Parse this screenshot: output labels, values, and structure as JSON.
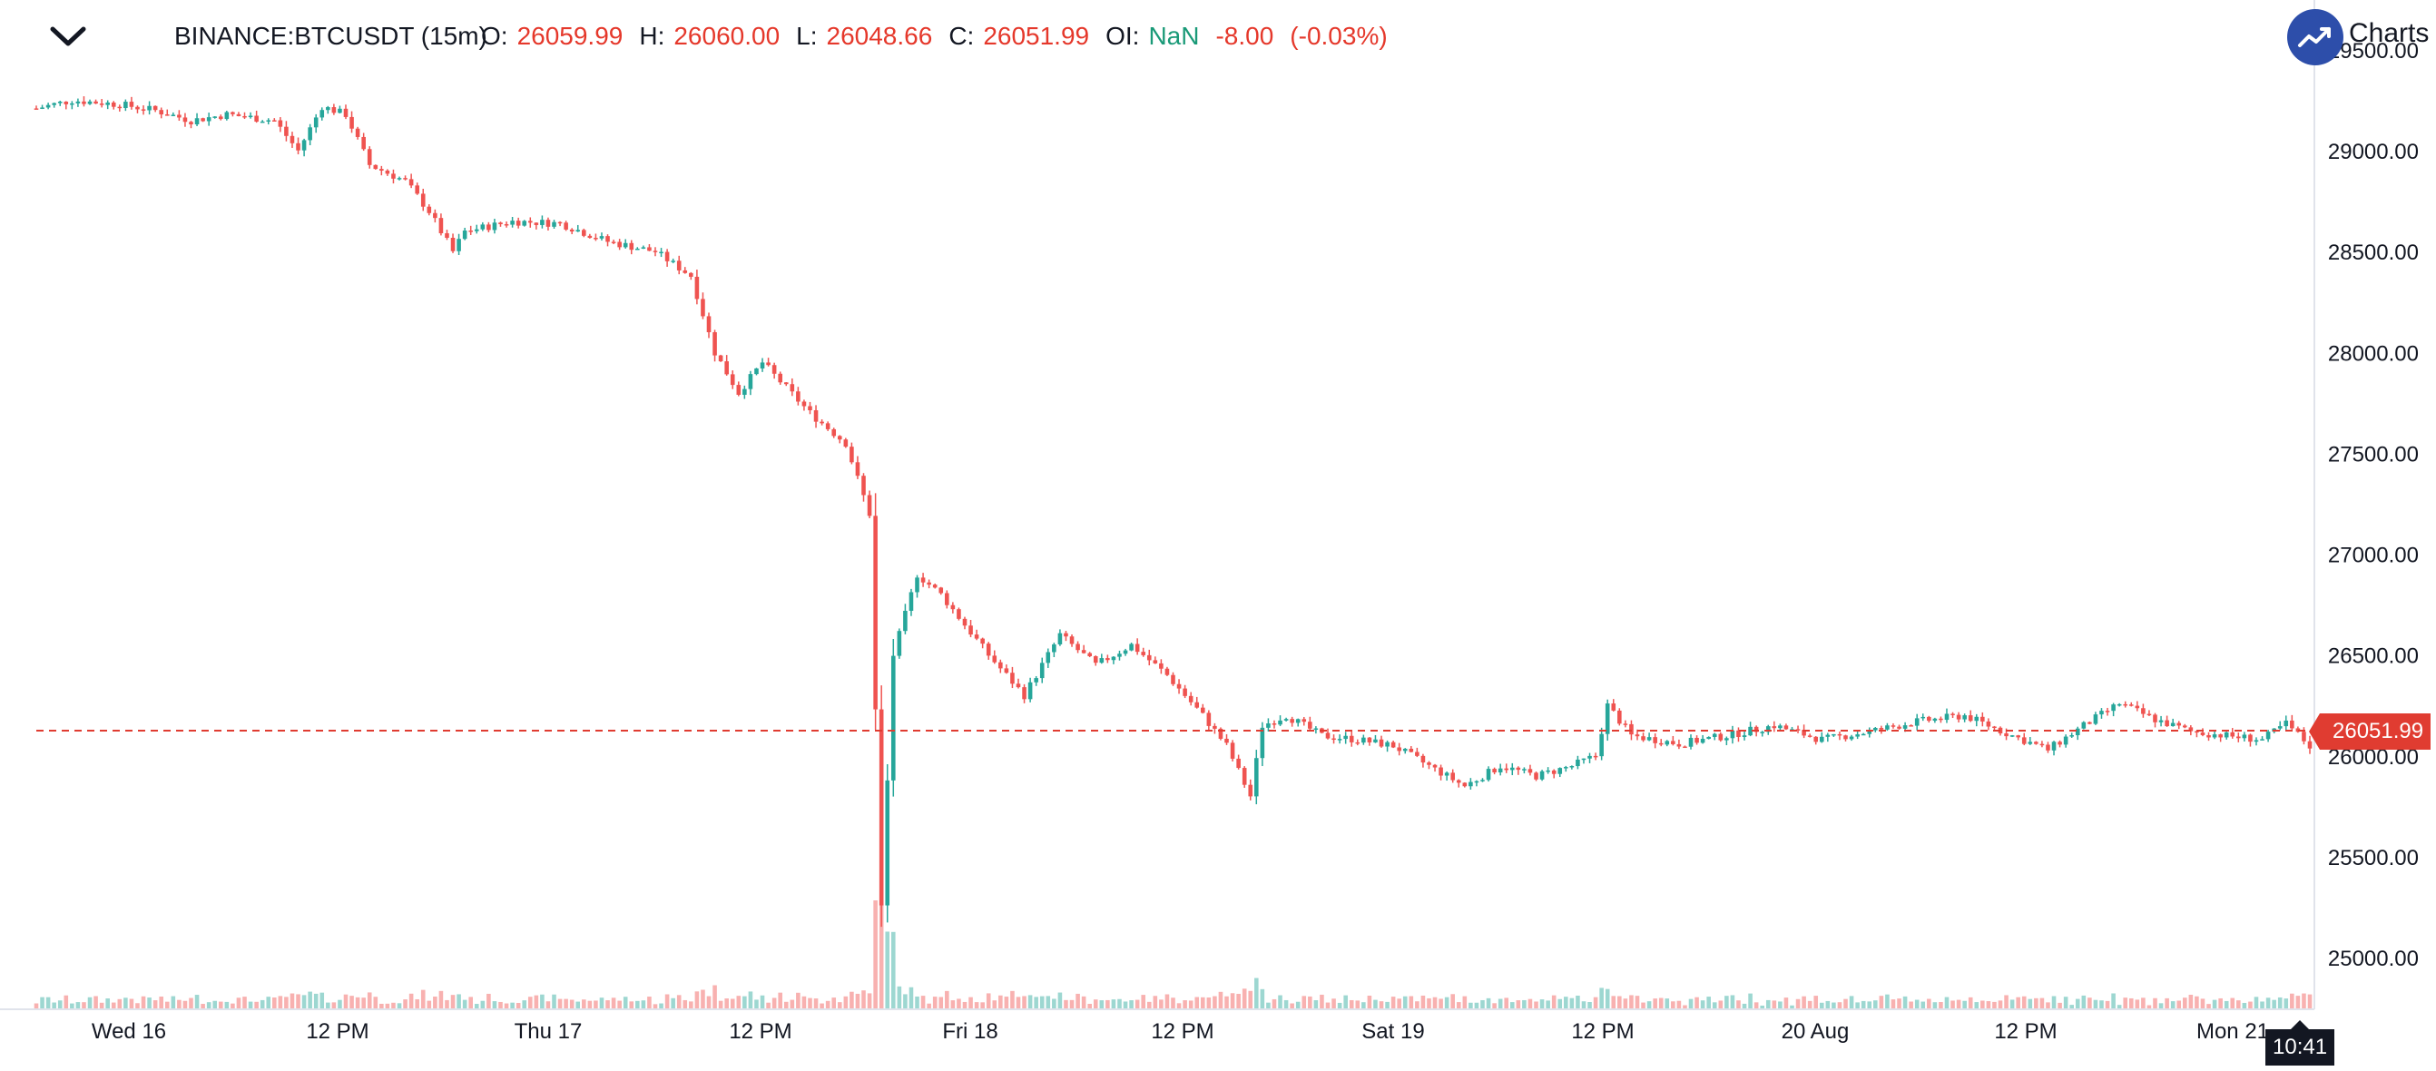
{
  "header": {
    "symbol": "BINANCE:BTCUSDT (15m)",
    "open_label": "O:",
    "open_value": "26059.99",
    "high_label": "H:",
    "high_value": "26060.00",
    "low_label": "L:",
    "low_value": "26048.66",
    "close_label": "C:",
    "close_value": "26051.99",
    "oi_label": "OI:",
    "oi_value": "NaN",
    "change_value": "-8.00",
    "change_percent": "(-0.03%)"
  },
  "branding": {
    "logo_icon": "trend-up-icon",
    "logo_text": "Charts b"
  },
  "price_tag": "26051.99",
  "crosshair_time": "10:41",
  "colors": {
    "up": "#26a69a",
    "down": "#ef5350",
    "last_price": "#e03c31",
    "logo_bg": "#2d4eaa"
  },
  "chart_data": {
    "type": "candlestick",
    "title": "",
    "xlabel": "",
    "ylabel": "",
    "interval": "15m",
    "ylim": [
      24800,
      29500
    ],
    "yticks": [
      25000,
      25500,
      26000,
      26500,
      27000,
      27500,
      28000,
      28500,
      29000,
      29500
    ],
    "ytick_labels": [
      "25000.00",
      "25500.00",
      "26000.00",
      "26500.00",
      "27000.00",
      "27500.00",
      "28000.00",
      "28500.00",
      "29000.00",
      "29500.00"
    ],
    "xticks": [
      "Wed 16",
      "12 PM",
      "Thu 17",
      "12 PM",
      "Fri 18",
      "12 PM",
      "Sat 19",
      "12 PM",
      "20 Aug",
      "12 PM",
      "Mon 21"
    ],
    "last_price": 26051.99,
    "price_path": [
      [
        0,
        29210
      ],
      [
        6,
        29250
      ],
      [
        14,
        29230
      ],
      [
        20,
        29200
      ],
      [
        26,
        29150
      ],
      [
        32,
        29180
      ],
      [
        40,
        29150
      ],
      [
        44,
        29000
      ],
      [
        48,
        29220
      ],
      [
        52,
        29180
      ],
      [
        56,
        28930
      ],
      [
        62,
        28850
      ],
      [
        66,
        28700
      ],
      [
        70,
        28500
      ],
      [
        72,
        28600
      ],
      [
        80,
        28650
      ],
      [
        88,
        28640
      ],
      [
        96,
        28550
      ],
      [
        104,
        28500
      ],
      [
        110,
        28380
      ],
      [
        114,
        28000
      ],
      [
        118,
        27800
      ],
      [
        122,
        27950
      ],
      [
        130,
        27700
      ],
      [
        136,
        27550
      ],
      [
        140,
        27200
      ],
      [
        142,
        25250
      ],
      [
        144,
        26500
      ],
      [
        148,
        26900
      ],
      [
        152,
        26800
      ],
      [
        156,
        26650
      ],
      [
        160,
        26500
      ],
      [
        166,
        26300
      ],
      [
        172,
        26600
      ],
      [
        178,
        26450
      ],
      [
        184,
        26550
      ],
      [
        190,
        26400
      ],
      [
        196,
        26200
      ],
      [
        200,
        26050
      ],
      [
        204,
        25800
      ],
      [
        206,
        26150
      ],
      [
        210,
        26200
      ],
      [
        216,
        26100
      ],
      [
        222,
        26080
      ],
      [
        228,
        26050
      ],
      [
        234,
        25950
      ],
      [
        240,
        25850
      ],
      [
        246,
        25950
      ],
      [
        252,
        25900
      ],
      [
        258,
        25950
      ],
      [
        262,
        26000
      ],
      [
        264,
        26250
      ],
      [
        268,
        26100
      ],
      [
        276,
        26060
      ],
      [
        284,
        26100
      ],
      [
        292,
        26150
      ],
      [
        300,
        26080
      ],
      [
        308,
        26120
      ],
      [
        316,
        26170
      ],
      [
        324,
        26200
      ],
      [
        332,
        26100
      ],
      [
        338,
        26030
      ],
      [
        344,
        26150
      ],
      [
        350,
        26260
      ],
      [
        356,
        26180
      ],
      [
        362,
        26120
      ],
      [
        368,
        26100
      ],
      [
        374,
        26080
      ],
      [
        378,
        26160
      ],
      [
        382,
        26050
      ]
    ]
  }
}
